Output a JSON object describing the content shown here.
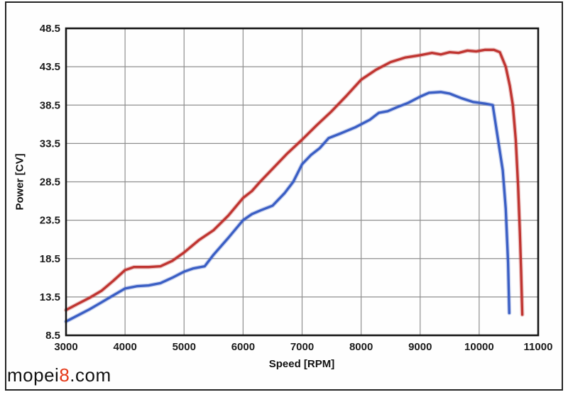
{
  "watermark": {
    "prefix": "mopei",
    "highlight": "8",
    "suffix": ".com",
    "highlight_color": "#e53817"
  },
  "chart_data": {
    "type": "line",
    "xlabel": "Speed [RPM]",
    "ylabel": "Power [CV]",
    "xlim": [
      3000,
      11000
    ],
    "ylim": [
      8.5,
      48.5
    ],
    "x_ticks": [
      3000,
      4000,
      5000,
      6000,
      7000,
      8000,
      9000,
      10000,
      11000
    ],
    "y_ticks": [
      8.5,
      13.5,
      18.5,
      23.5,
      28.5,
      33.5,
      38.5,
      43.5,
      48.5
    ],
    "grid": true,
    "legend": "none",
    "axis_color": "#161616",
    "grid_color": "#8f8f8f",
    "series": [
      {
        "name": "red-power-curve",
        "color": "#bf3430",
        "points": [
          [
            3000,
            11.8
          ],
          [
            3200,
            12.6
          ],
          [
            3400,
            13.4
          ],
          [
            3600,
            14.3
          ],
          [
            3800,
            15.6
          ],
          [
            4000,
            17.0
          ],
          [
            4150,
            17.4
          ],
          [
            4400,
            17.4
          ],
          [
            4600,
            17.5
          ],
          [
            4800,
            18.2
          ],
          [
            5000,
            19.3
          ],
          [
            5250,
            20.9
          ],
          [
            5500,
            22.2
          ],
          [
            5750,
            24.1
          ],
          [
            6000,
            26.4
          ],
          [
            6150,
            27.3
          ],
          [
            6300,
            28.6
          ],
          [
            6500,
            30.2
          ],
          [
            6750,
            32.2
          ],
          [
            7000,
            34.0
          ],
          [
            7250,
            35.9
          ],
          [
            7500,
            37.7
          ],
          [
            7750,
            39.7
          ],
          [
            8000,
            41.8
          ],
          [
            8250,
            43.1
          ],
          [
            8500,
            44.1
          ],
          [
            8750,
            44.7
          ],
          [
            9000,
            45.0
          ],
          [
            9200,
            45.3
          ],
          [
            9350,
            45.1
          ],
          [
            9500,
            45.4
          ],
          [
            9650,
            45.3
          ],
          [
            9800,
            45.6
          ],
          [
            9950,
            45.5
          ],
          [
            10100,
            45.7
          ],
          [
            10250,
            45.7
          ],
          [
            10350,
            45.4
          ],
          [
            10450,
            43.5
          ],
          [
            10520,
            41.0
          ],
          [
            10570,
            38.5
          ],
          [
            10620,
            34.0
          ],
          [
            10660,
            28.0
          ],
          [
            10690,
            22.0
          ],
          [
            10710,
            17.0
          ],
          [
            10730,
            11.2
          ]
        ]
      },
      {
        "name": "blue-power-curve",
        "color": "#3a5ec4",
        "points": [
          [
            3000,
            10.3
          ],
          [
            3200,
            11.1
          ],
          [
            3400,
            11.9
          ],
          [
            3600,
            12.8
          ],
          [
            3800,
            13.7
          ],
          [
            4000,
            14.6
          ],
          [
            4200,
            14.9
          ],
          [
            4400,
            15.0
          ],
          [
            4600,
            15.3
          ],
          [
            4800,
            16.0
          ],
          [
            5000,
            16.8
          ],
          [
            5150,
            17.2
          ],
          [
            5350,
            17.5
          ],
          [
            5500,
            19.0
          ],
          [
            5750,
            21.2
          ],
          [
            6000,
            23.5
          ],
          [
            6150,
            24.3
          ],
          [
            6300,
            24.8
          ],
          [
            6500,
            25.4
          ],
          [
            6700,
            27.0
          ],
          [
            6850,
            28.5
          ],
          [
            7000,
            30.8
          ],
          [
            7150,
            32.0
          ],
          [
            7300,
            32.9
          ],
          [
            7450,
            34.2
          ],
          [
            7650,
            34.8
          ],
          [
            7900,
            35.6
          ],
          [
            8150,
            36.6
          ],
          [
            8300,
            37.5
          ],
          [
            8450,
            37.7
          ],
          [
            8600,
            38.2
          ],
          [
            8800,
            38.8
          ],
          [
            9000,
            39.6
          ],
          [
            9150,
            40.1
          ],
          [
            9350,
            40.2
          ],
          [
            9500,
            40.0
          ],
          [
            9700,
            39.4
          ],
          [
            9900,
            38.9
          ],
          [
            10100,
            38.7
          ],
          [
            10230,
            38.5
          ],
          [
            10330,
            33.5
          ],
          [
            10400,
            30.0
          ],
          [
            10450,
            25.0
          ],
          [
            10490,
            18.0
          ],
          [
            10510,
            11.4
          ]
        ]
      }
    ]
  }
}
